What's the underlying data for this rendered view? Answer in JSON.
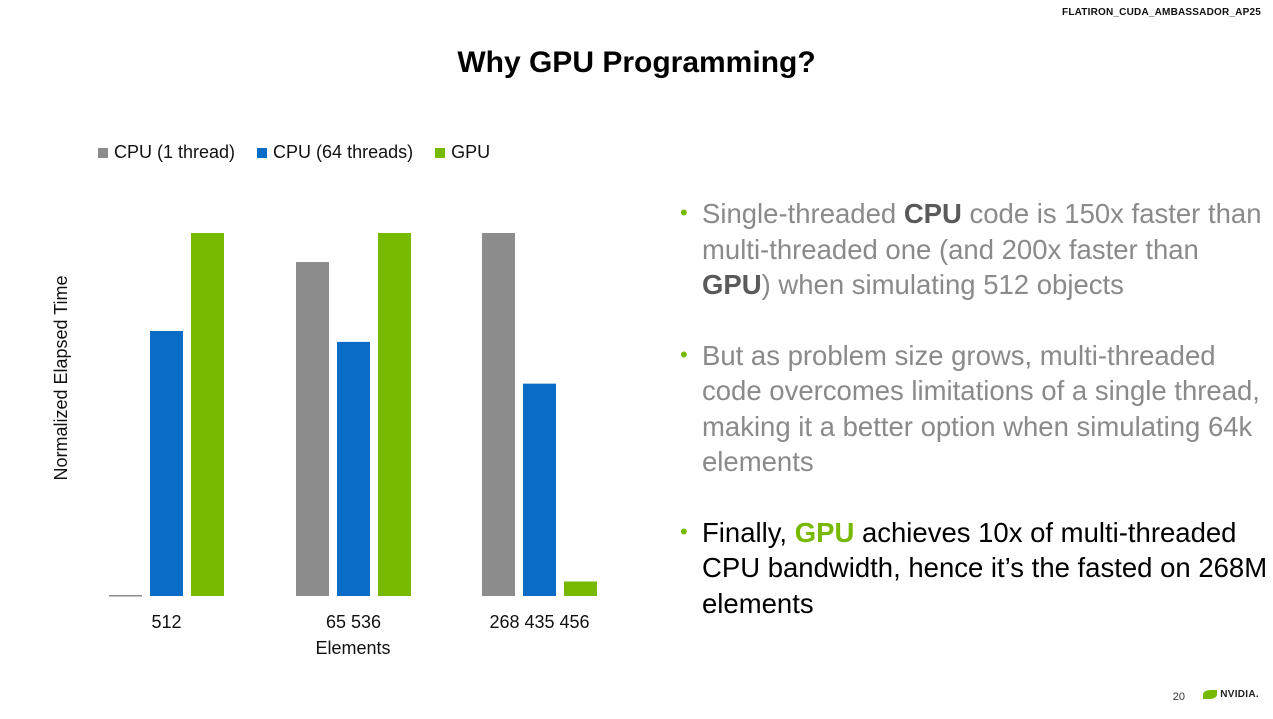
{
  "header_tag": "FLATIRON_CUDA_AMBASSADOR_AP25",
  "title": "Why GPU Programming?",
  "colors": {
    "cpu1": "#8c8c8c",
    "cpu64": "#0a6cc7",
    "gpu": "#76b900",
    "accent": "#76b900"
  },
  "chart_data": {
    "type": "bar",
    "title": "",
    "xlabel": "Elements",
    "ylabel": "Normalized Elapsed Time",
    "categories": [
      "512",
      "65 536",
      "268 435 456"
    ],
    "series": [
      {
        "name": "CPU (1 thread)",
        "values": [
          0.005,
          0.92,
          1.0
        ]
      },
      {
        "name": "CPU (64 threads)",
        "values": [
          0.73,
          0.7,
          0.585
        ]
      },
      {
        "name": "GPU",
        "values": [
          1.0,
          1.0,
          0.04
        ]
      }
    ],
    "ylim": [
      0,
      1
    ],
    "legend": "top-left"
  },
  "bullets": [
    {
      "parts": [
        {
          "t": "Single-threaded "
        },
        {
          "t": "CPU",
          "b": true
        },
        {
          "t": " code is 150x faster than multi-threaded one (and 200x faster than "
        },
        {
          "t": "GPU",
          "b": true
        },
        {
          "t": ") when simulating 512 objects"
        }
      ]
    },
    {
      "parts": [
        {
          "t": "But as problem size grows, multi-threaded code overcomes limitations of a single thread, making it a better option when simulating 64k elements"
        }
      ]
    },
    {
      "parts": [
        {
          "t": "Finally, "
        },
        {
          "t": "GPU",
          "b": true
        },
        {
          "t": " achieves 10x of multi-threaded CPU bandwidth, hence it’s the fasted on 268M elements"
        }
      ]
    }
  ],
  "bullet_dot": "•",
  "page_number": "20",
  "logo_text": "NVIDIA."
}
